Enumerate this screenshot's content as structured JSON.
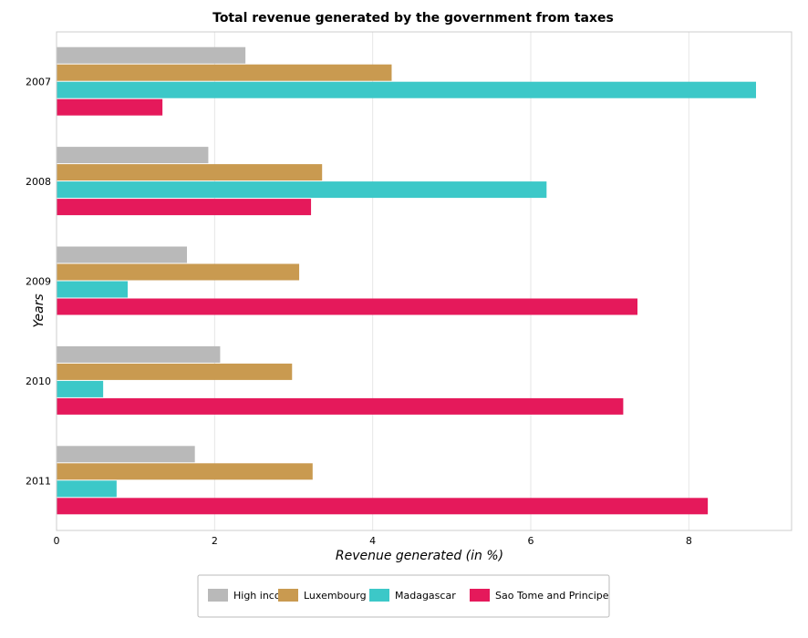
{
  "colors": {
    "High income": "#b9b9b9",
    "Luxembourg": "#c99a50",
    "Madagascar": "#3cc8c8",
    "Sao Tome and Principe": "#e5195b"
  },
  "chart_data": {
    "type": "bar",
    "orientation": "horizontal",
    "title": "Total revenue generated by the government from taxes",
    "xlabel": "Revenue generated (in %)",
    "ylabel": "Years",
    "categories": [
      "2007",
      "2008",
      "2009",
      "2010",
      "2011"
    ],
    "xlim": [
      0,
      9.3
    ],
    "xticks": [
      "0",
      "2",
      "4",
      "6",
      "8"
    ],
    "grid": true,
    "legend_position": "bottom",
    "series": [
      {
        "name": "High income",
        "values": [
          2.39,
          1.92,
          1.65,
          2.07,
          1.75
        ]
      },
      {
        "name": "Luxembourg",
        "values": [
          4.24,
          3.36,
          3.07,
          2.98,
          3.24
        ]
      },
      {
        "name": "Madagascar",
        "values": [
          8.85,
          6.2,
          0.9,
          0.59,
          0.76
        ]
      },
      {
        "name": "Sao Tome and Principe",
        "values": [
          1.34,
          3.22,
          7.35,
          7.17,
          8.24
        ]
      }
    ]
  }
}
